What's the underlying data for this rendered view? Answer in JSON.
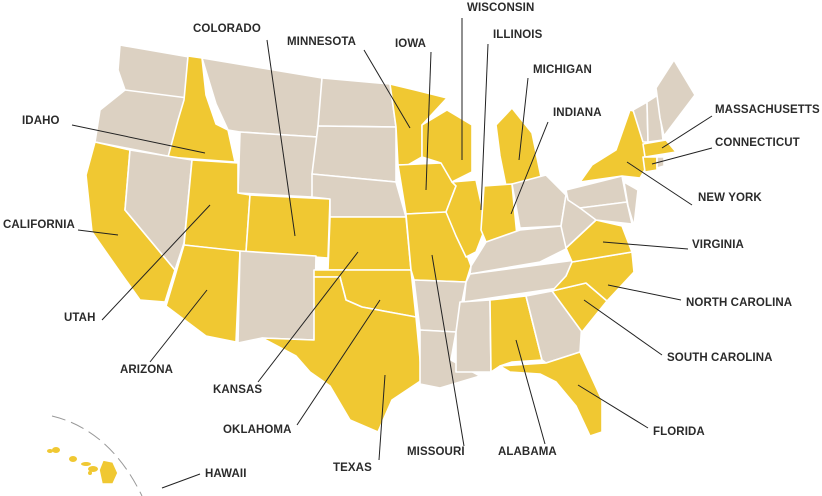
{
  "colors": {
    "highlighted": "#f0c832",
    "other": "#dcd1c2",
    "border": "#ffffff",
    "leader": "#222222"
  },
  "highlighted_states": [
    "Idaho",
    "California",
    "Utah",
    "Arizona",
    "Colorado",
    "Kansas",
    "Oklahoma",
    "Texas",
    "Minnesota",
    "Iowa",
    "Missouri",
    "Wisconsin",
    "Illinois",
    "Michigan",
    "Indiana",
    "Alabama",
    "Florida",
    "South Carolina",
    "North Carolina",
    "Virginia",
    "New York",
    "Massachusetts",
    "Connecticut",
    "Hawaii"
  ],
  "labels": {
    "colorado": "COLORADO",
    "minnesota": "MINNESOTA",
    "iowa": "IOWA",
    "wisconsin": "WISCONSIN",
    "illinois": "ILLINOIS",
    "michigan": "MICHIGAN",
    "indiana": "INDIANA",
    "massachusetts": "MASSACHUSETTS",
    "connecticut": "CONNECTICUT",
    "new_york": "NEW YORK",
    "virginia": "VIRGINIA",
    "north_carolina": "NORTH CAROLINA",
    "south_carolina": "SOUTH CAROLINA",
    "florida": "FLORIDA",
    "alabama": "ALABAMA",
    "missouri": "MISSOURI",
    "texas": "TEXAS",
    "oklahoma": "OKLAHOMA",
    "kansas": "KANSAS",
    "arizona": "ARIZONA",
    "utah": "UTAH",
    "california": "CALIFORNIA",
    "idaho": "IDAHO",
    "hawaii": "HAWAII"
  }
}
